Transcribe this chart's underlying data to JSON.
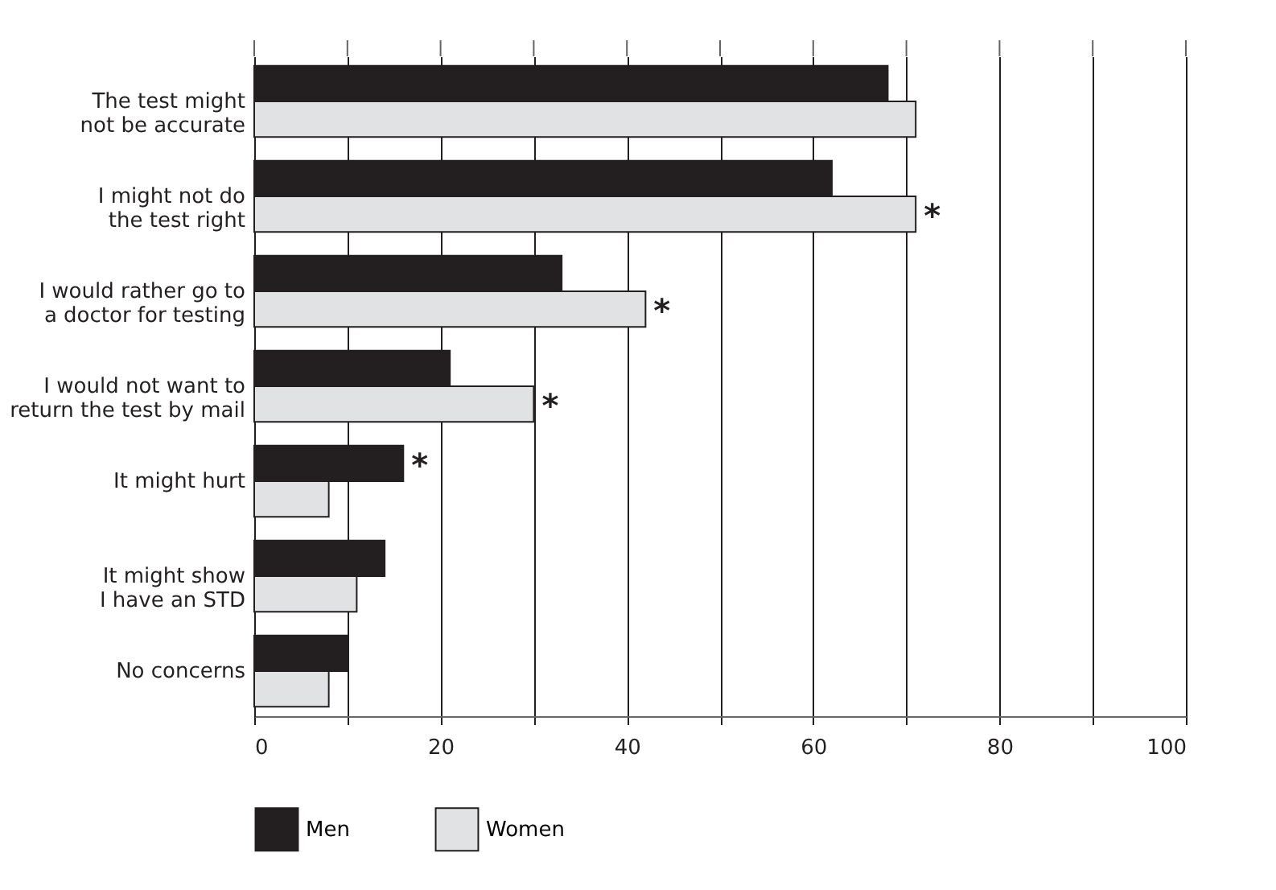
{
  "chart_data": {
    "type": "bar",
    "orientation": "horizontal",
    "categories": [
      "The test might not be accurate",
      "I might not do the test right",
      "I would rather go to a doctor for testing",
      "I would not want to return the test by mail",
      "It might hurt",
      "It might show I have an STD",
      "No concerns"
    ],
    "series": [
      {
        "name": "Men",
        "color": "#231f20",
        "values": [
          68,
          62,
          33,
          21,
          16,
          14,
          10
        ]
      },
      {
        "name": "Women",
        "color": "#e1e2e4",
        "values": [
          71,
          71,
          42,
          30,
          8,
          11,
          8
        ]
      }
    ],
    "xlim": [
      0,
      100
    ],
    "xticks": [
      0,
      {
        "value": 10,
        "label": null
      },
      20,
      {
        "value": 30,
        "label": null
      },
      40,
      {
        "value": 50,
        "label": null
      },
      60,
      {
        "value": 70,
        "label": null
      },
      80,
      {
        "value": 90,
        "label": null
      },
      100
    ],
    "grid": "x",
    "legend": "bottom",
    "annotations": [
      {
        "text": "*",
        "x": 71,
        "y": "I might not do the test right"
      },
      {
        "text": "*",
        "x": 42,
        "y": "I would rather go to a doctor for testing"
      },
      {
        "text": "*",
        "x": 30,
        "y": "I would not want to return the test by mail"
      },
      {
        "text": "*",
        "x": 16,
        "y": "It might hurt"
      }
    ]
  }
}
